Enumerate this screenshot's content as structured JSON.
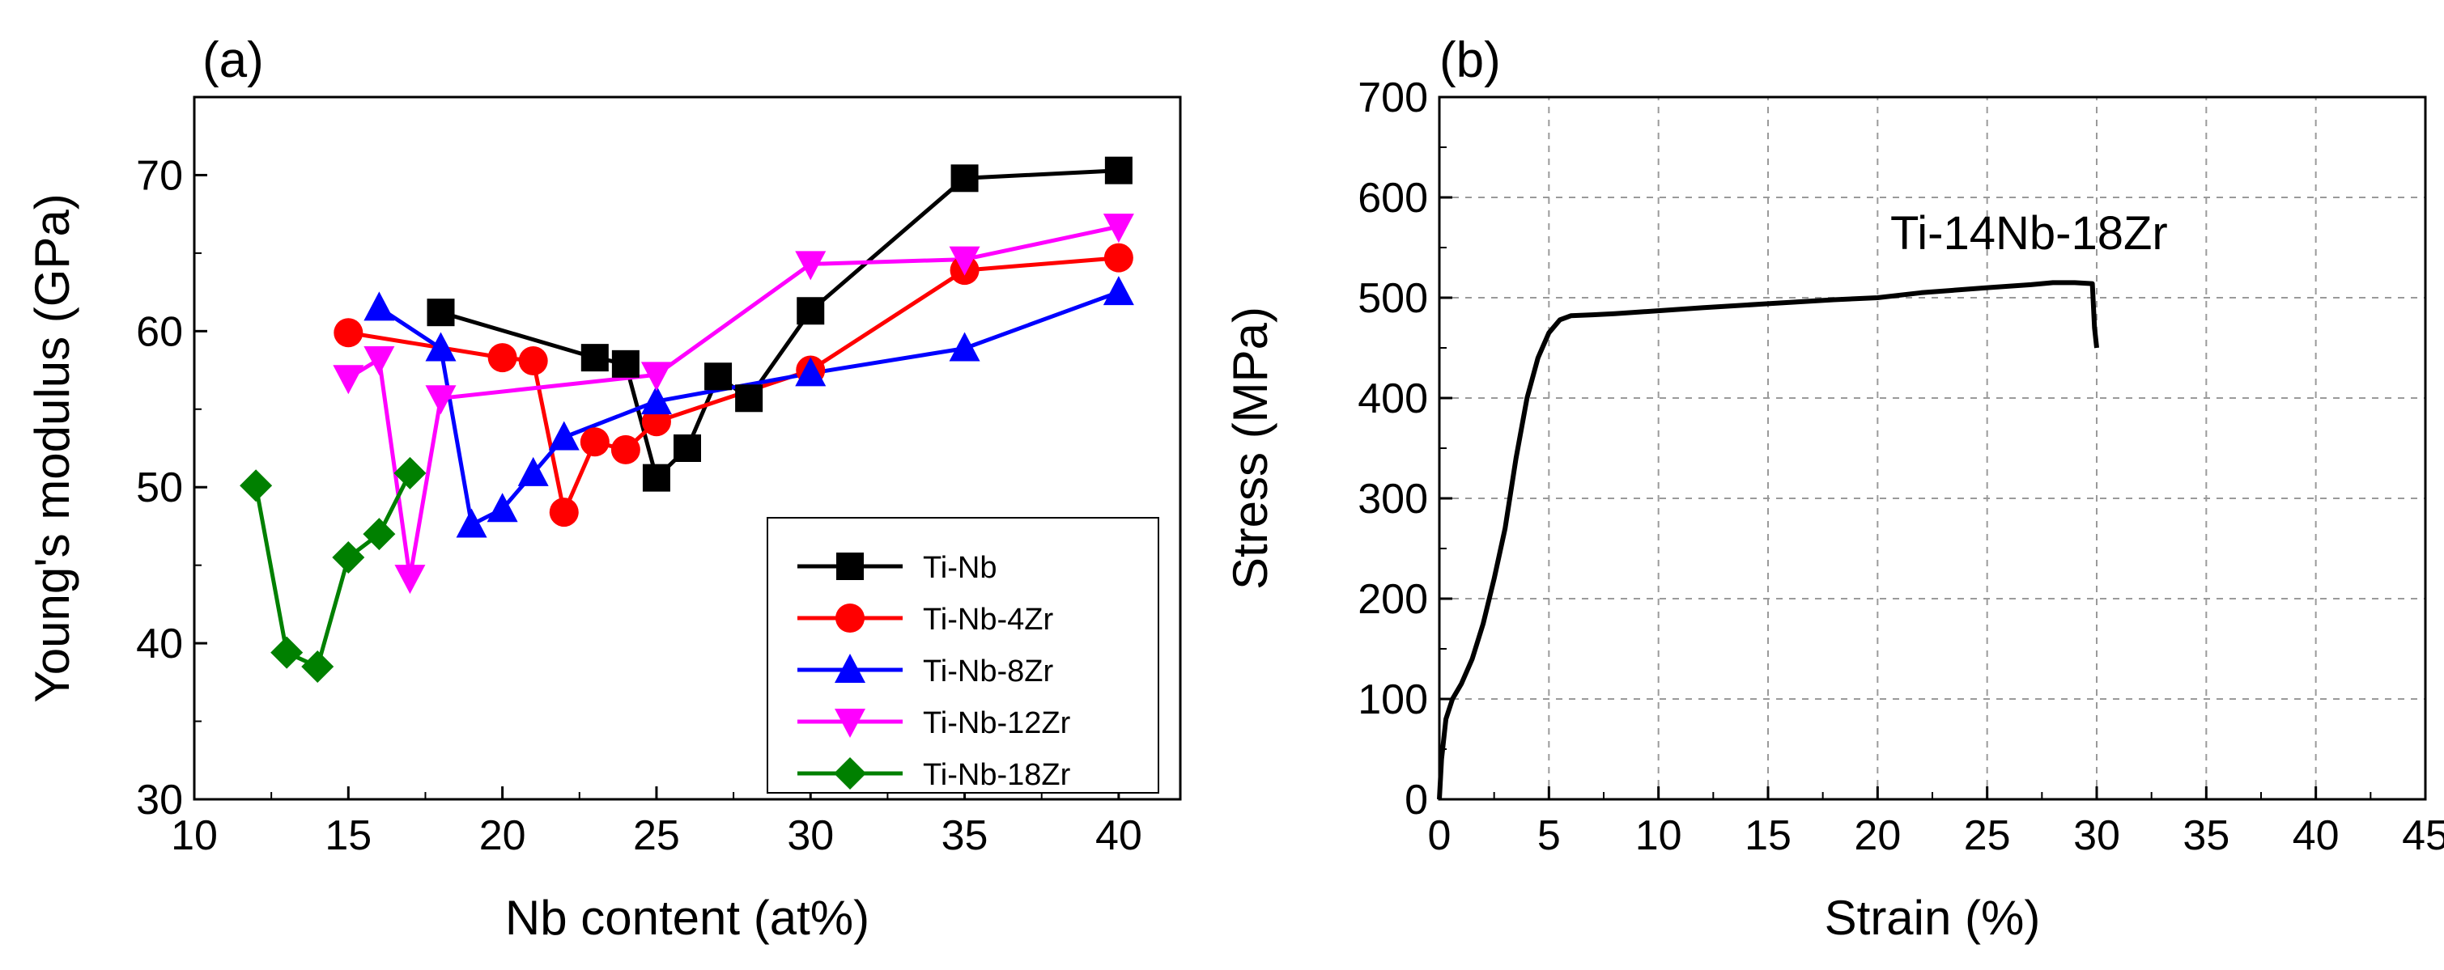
{
  "chart_data": [
    {
      "type": "line",
      "panel_label": "(a)",
      "xlabel": "Nb content (at%)",
      "ylabel": "Young's modulus (GPa)",
      "xlim": [
        10,
        42
      ],
      "ylim": [
        30,
        75
      ],
      "x_ticks": [
        10,
        15,
        20,
        25,
        30,
        35,
        40
      ],
      "y_ticks": [
        30,
        40,
        50,
        60,
        70
      ],
      "grid": false,
      "legend_position": "bottom-right",
      "series": [
        {
          "name": "Ti-Nb",
          "color": "#000000",
          "marker": "square",
          "x": [
            18,
            23,
            24,
            25,
            26,
            27,
            28,
            30,
            35,
            40
          ],
          "y": [
            61.2,
            58.3,
            57.9,
            50.6,
            52.5,
            57.1,
            55.7,
            61.3,
            69.8,
            70.3
          ]
        },
        {
          "name": "Ti-Nb-4Zr",
          "color": "#ff0000",
          "marker": "circle",
          "x": [
            15,
            20,
            21,
            22,
            23,
            24,
            25,
            30,
            35,
            40
          ],
          "y": [
            59.9,
            58.3,
            58.1,
            48.4,
            52.9,
            52.4,
            54.2,
            57.5,
            63.9,
            64.7
          ]
        },
        {
          "name": "Ti-Nb-8Zr",
          "color": "#0000ff",
          "marker": "triangle-up",
          "x": [
            16,
            18,
            19,
            20,
            21,
            22,
            25,
            30,
            35,
            40
          ],
          "y": [
            61.5,
            58.9,
            47.6,
            48.6,
            50.9,
            53.2,
            55.5,
            57.3,
            58.9,
            62.5
          ]
        },
        {
          "name": "Ti-Nb-12Zr",
          "color": "#ff00ff",
          "marker": "triangle-down",
          "x": [
            15,
            16,
            17,
            18,
            25,
            30,
            35,
            40
          ],
          "y": [
            57.0,
            58.2,
            44.2,
            55.7,
            57.2,
            64.3,
            64.6,
            66.7
          ]
        },
        {
          "name": "Ti-Nb-18Zr",
          "color": "#008000",
          "marker": "diamond",
          "x": [
            12,
            13,
            14,
            15,
            16,
            17
          ],
          "y": [
            50.1,
            39.4,
            38.5,
            45.5,
            47.0,
            50.9
          ]
        }
      ]
    },
    {
      "type": "line",
      "panel_label": "(b)",
      "xlabel": "Strain (%)",
      "ylabel": "Stress (MPa)",
      "xlim": [
        0,
        45
      ],
      "ylim": [
        0,
        700
      ],
      "x_ticks": [
        0,
        5,
        10,
        15,
        20,
        25,
        30,
        35,
        40,
        45
      ],
      "y_ticks": [
        0,
        100,
        200,
        300,
        400,
        500,
        600,
        700
      ],
      "grid": true,
      "annotation": "Ti-14Nb-18Zr",
      "series": [
        {
          "name": "Ti-14Nb-18Zr",
          "color": "#000000",
          "x": [
            0,
            0.1,
            0.3,
            0.6,
            1.0,
            1.5,
            2.0,
            2.5,
            3.0,
            3.5,
            4.0,
            4.5,
            5.0,
            5.5,
            6.0,
            7.0,
            8.0,
            10,
            12,
            15,
            18,
            20,
            22,
            25,
            27,
            28,
            29,
            29.8,
            29.9,
            30.0
          ],
          "y": [
            0,
            40,
            80,
            100,
            115,
            140,
            175,
            220,
            270,
            340,
            400,
            440,
            465,
            478,
            482,
            483,
            484,
            487,
            490,
            494,
            498,
            500,
            505,
            510,
            513,
            515,
            515,
            514,
            470,
            450
          ]
        }
      ]
    }
  ]
}
